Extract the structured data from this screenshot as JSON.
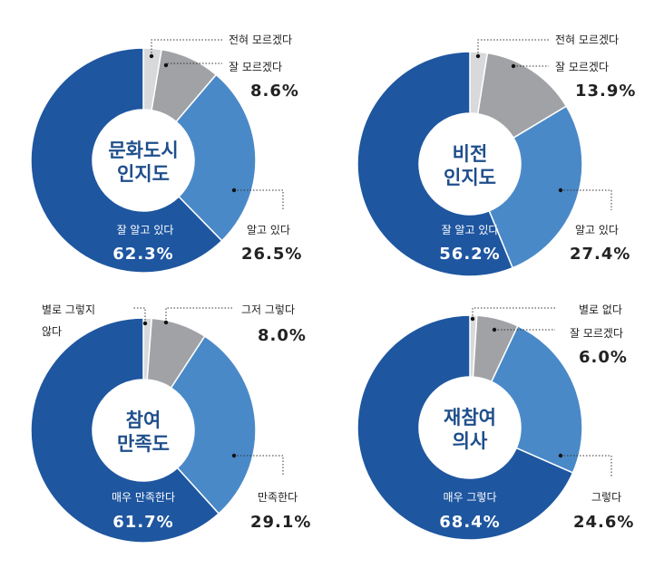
{
  "colors": {
    "dark_blue": "#1e56a0",
    "mid_blue": "#4a89c8",
    "gray": "#a0a2a6",
    "light_gray": "#d7d9db",
    "title_blue": "#1f4e8c"
  },
  "chart_data": [
    {
      "type": "pie",
      "variant": "donut",
      "title_lines": [
        "문화도시",
        "인지도"
      ],
      "slices": [
        {
          "label": "전혀 모르겠다",
          "value": 2.6,
          "value_label": "",
          "color": "#d7d9db"
        },
        {
          "label": "잘 모르겠다",
          "value": 8.6,
          "value_label": "8.6%",
          "color": "#a0a2a6"
        },
        {
          "label": "알고 있다",
          "value": 26.5,
          "value_label": "26.5%",
          "color": "#4a89c8"
        },
        {
          "label": "잘 알고 있다",
          "value": 62.3,
          "value_label": "62.3%",
          "color": "#1e56a0"
        }
      ]
    },
    {
      "type": "pie",
      "variant": "donut",
      "title_lines": [
        "비전",
        "인지도"
      ],
      "slices": [
        {
          "label": "전혀 모르겠다",
          "value": 2.5,
          "value_label": "",
          "color": "#d7d9db"
        },
        {
          "label": "잘 모르겠다",
          "value": 13.9,
          "value_label": "13.9%",
          "color": "#a0a2a6"
        },
        {
          "label": "알고 있다",
          "value": 27.4,
          "value_label": "27.4%",
          "color": "#4a89c8"
        },
        {
          "label": "잘 알고 있다",
          "value": 56.2,
          "value_label": "56.2%",
          "color": "#1e56a0"
        }
      ]
    },
    {
      "type": "pie",
      "variant": "donut",
      "title_lines": [
        "참여",
        "만족도"
      ],
      "slices": [
        {
          "label": "별로 그렇지 않다",
          "value": 1.2,
          "value_label": "",
          "color": "#d7d9db"
        },
        {
          "label": "그저 그렇다",
          "value": 8.0,
          "value_label": "8.0%",
          "color": "#a0a2a6"
        },
        {
          "label": "만족한다",
          "value": 29.1,
          "value_label": "29.1%",
          "color": "#4a89c8"
        },
        {
          "label": "매우 만족한다",
          "value": 61.7,
          "value_label": "61.7%",
          "color": "#1e56a0"
        }
      ]
    },
    {
      "type": "pie",
      "variant": "donut",
      "title_lines": [
        "재참여",
        "의사"
      ],
      "slices": [
        {
          "label": "별로 없다",
          "value": 1.0,
          "value_label": "",
          "color": "#d7d9db"
        },
        {
          "label": "잘 모르겠다",
          "value": 6.0,
          "value_label": "6.0%",
          "color": "#a0a2a6"
        },
        {
          "label": "그렇다",
          "value": 24.6,
          "value_label": "24.6%",
          "color": "#4a89c8"
        },
        {
          "label": "매우 그렇다",
          "value": 68.4,
          "value_label": "68.4%",
          "color": "#1e56a0"
        }
      ]
    }
  ]
}
